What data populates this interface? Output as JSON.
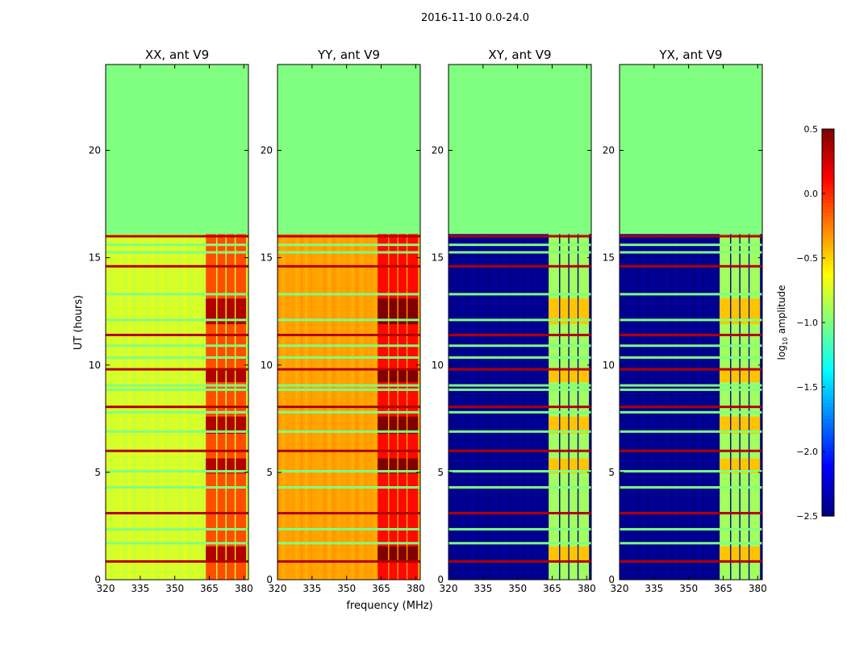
{
  "figure": {
    "suptitle": "2016-11-10 0.0-24.0",
    "xlabel": "frequency (MHz)",
    "ylabel": "UT (hours)",
    "colorbar_label_main": "log",
    "colorbar_label_sub": "10",
    "colorbar_label_rest": " amplitude"
  },
  "chart_data": {
    "type": "heatmap",
    "colormap": "jet",
    "xlim": [
      320,
      382
    ],
    "ylim": [
      0,
      24
    ],
    "xticks": [
      320,
      335,
      350,
      365,
      380
    ],
    "yticks": [
      0,
      5,
      10,
      15,
      20
    ],
    "data_end_hour": 16.1,
    "rfi_band_mhz": [
      363.5,
      381
    ],
    "colorbar": {
      "vmin": -2.5,
      "vmax": 0.5,
      "ticks": [
        "0.5",
        "0.0",
        "−0.5",
        "−1.0",
        "−1.5",
        "−2.0",
        "−2.5"
      ],
      "tick_values": [
        0.5,
        0.0,
        -0.5,
        -1.0,
        -1.5,
        -2.0,
        -2.5
      ]
    },
    "panels": [
      {
        "title": "XX, ant V9",
        "base_level": -0.75,
        "band_level": -0.1
      },
      {
        "title": "YY, ant V9",
        "base_level": -0.35,
        "band_level": 0.1
      },
      {
        "title": "XY, ant V9",
        "base_level": -2.45,
        "band_level": -0.9
      },
      {
        "title": "YX, ant V9",
        "base_level": -2.45,
        "band_level": -0.9
      }
    ],
    "empty_level": -1.0,
    "flag_rows_hours": [
      0.85,
      1.7,
      2.35,
      3.1,
      4.3,
      5.05,
      6.0,
      6.9,
      7.8,
      8.05,
      8.85,
      9.05,
      9.8,
      10.35,
      10.9,
      11.4,
      12.1,
      13.3,
      14.6,
      15.25,
      15.6,
      16.0
    ]
  }
}
